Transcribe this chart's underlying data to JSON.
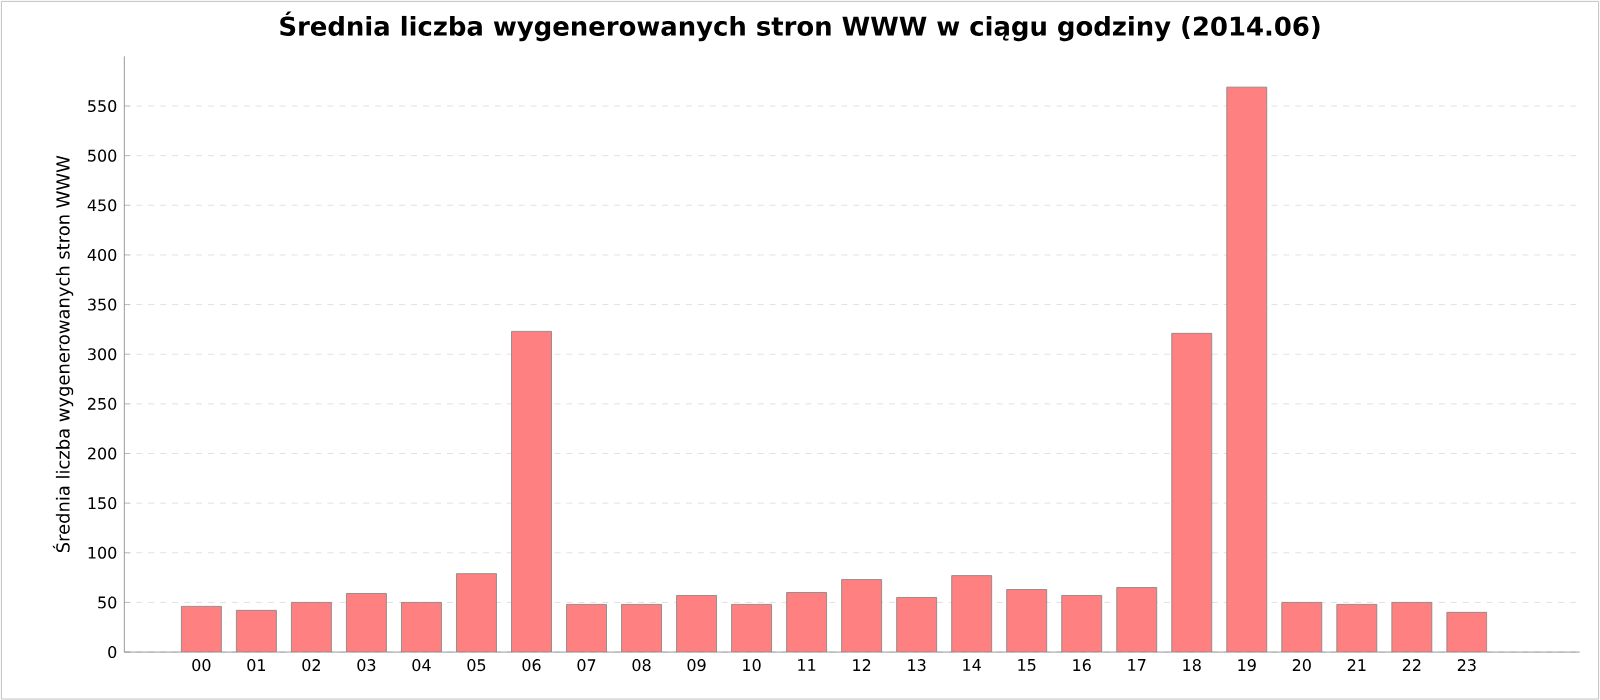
{
  "chart_data": {
    "type": "bar",
    "title": "Średnia liczba wygenerowanych stron WWW w ciągu godziny (2014.06)",
    "ylabel": "Średnia liczba wygenerowanych stron WWW",
    "categories": [
      "00",
      "01",
      "02",
      "03",
      "04",
      "05",
      "06",
      "07",
      "08",
      "09",
      "10",
      "11",
      "12",
      "13",
      "14",
      "15",
      "16",
      "17",
      "18",
      "19",
      "20",
      "21",
      "22",
      "23"
    ],
    "values": [
      46,
      42,
      50,
      59,
      50,
      79,
      323,
      48,
      48,
      57,
      48,
      60,
      73,
      55,
      77,
      63,
      57,
      65,
      321,
      569,
      50,
      48,
      50,
      40
    ],
    "color": "#ff8080",
    "ylim": [
      0,
      600
    ],
    "yticks": [
      0,
      50,
      100,
      150,
      200,
      250,
      300,
      350,
      400,
      450,
      500,
      550
    ],
    "grid": "y"
  }
}
